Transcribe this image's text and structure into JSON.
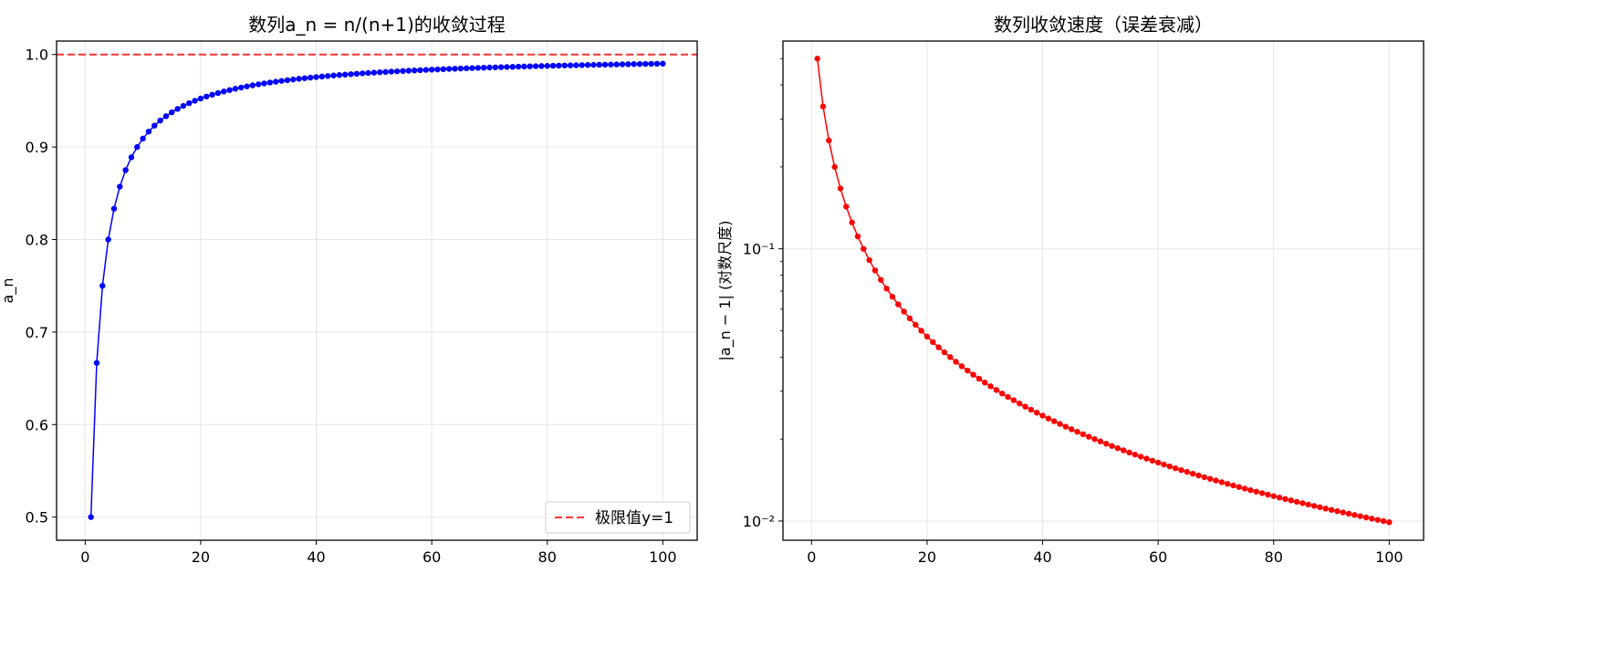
{
  "chart_data": [
    {
      "type": "line",
      "title": "数列a_n = n/(n+1)的收敛过程",
      "xlabel": "",
      "ylabel": "a_n",
      "xlim": [
        -4.95,
        105.95
      ],
      "ylim": [
        0.475,
        1.0145
      ],
      "xticks": [
        0,
        20,
        40,
        60,
        80,
        100
      ],
      "xtick_labels": [
        "0",
        "20",
        "40",
        "60",
        "80",
        "100"
      ],
      "yticks": [
        0.5,
        0.6,
        0.7,
        0.8,
        0.9,
        1.0
      ],
      "ytick_labels": [
        "0.5",
        "0.6",
        "0.7",
        "0.8",
        "0.9",
        "1.0"
      ],
      "grid": true,
      "legend_position": "lower-right",
      "series": [
        {
          "formula": "n/(n+1)",
          "x_start": 1,
          "x_end": 100,
          "color": "#0000ff",
          "marker": "circle"
        }
      ],
      "reference_lines": [
        {
          "name": "极限值y=1",
          "y": 1.0,
          "color": "#ff0000",
          "style": "dashed"
        }
      ]
    },
    {
      "type": "line",
      "title": "数列收敛速度（误差衰减）",
      "xlabel": "",
      "ylabel": "|a_n − 1| (对数尺度)",
      "xlim": [
        -4.95,
        105.95
      ],
      "ylim": [
        0.0085,
        0.58
      ],
      "yscale": "log",
      "xticks": [
        0,
        20,
        40,
        60,
        80,
        100
      ],
      "xtick_labels": [
        "0",
        "20",
        "40",
        "60",
        "80",
        "100"
      ],
      "yticks": [
        0.01,
        0.1
      ],
      "ytick_labels": [
        "10⁻²",
        "10⁻¹"
      ],
      "grid": true,
      "series": [
        {
          "formula": "1/(n+1)",
          "x_start": 1,
          "x_end": 100,
          "color": "#ff0000",
          "marker": "circle"
        }
      ]
    }
  ]
}
